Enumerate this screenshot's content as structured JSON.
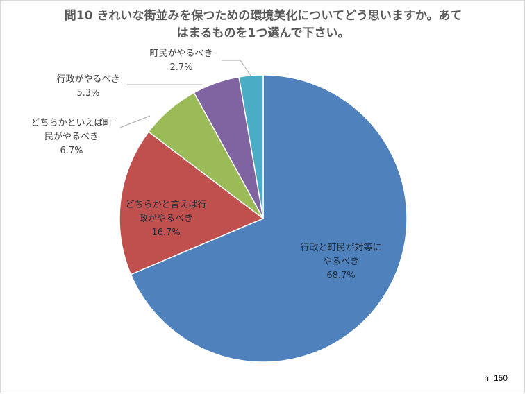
{
  "chart_data": {
    "type": "pie",
    "title_lines": [
      "問10 きれいな街並みを保つための環境美化についてどう思いますか。あて",
      "はまるものを1つ選んで下さい。"
    ],
    "slices": [
      {
        "label_lines": [
          "行政と町民が対等に",
          "やるべき"
        ],
        "value": 68.7,
        "value_label": "68.7%",
        "color": "#4f81bd"
      },
      {
        "label_lines": [
          "どちらかと言えば行",
          "政がやるべき"
        ],
        "value": 16.7,
        "value_label": "16.7%",
        "color": "#c0504d"
      },
      {
        "label_lines": [
          "どちらかといえば町",
          "民がやるべき"
        ],
        "value": 6.7,
        "value_label": "6.7%",
        "color": "#9bbb59"
      },
      {
        "label_lines": [
          "行政がやるべき"
        ],
        "value": 5.3,
        "value_label": "5.3%",
        "color": "#8064a2"
      },
      {
        "label_lines": [
          "町民がやるべき"
        ],
        "value": 2.7,
        "value_label": "2.7%",
        "color": "#4bacc6"
      }
    ],
    "note": "n=150"
  }
}
